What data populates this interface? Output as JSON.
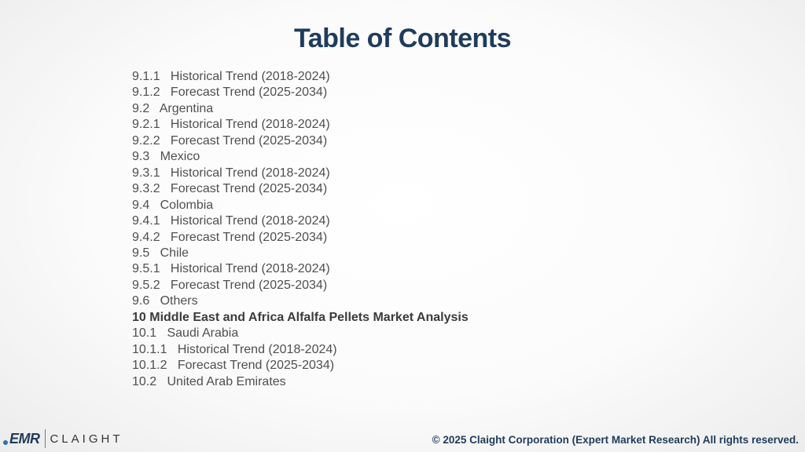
{
  "header": {
    "title": "Table of Contents"
  },
  "toc": {
    "items": [
      {
        "text": "9.1.1   Historical Trend (2018-2024)",
        "bold": false
      },
      {
        "text": "9.1.2   Forecast Trend (2025-2034)",
        "bold": false
      },
      {
        "text": "9.2   Argentina",
        "bold": false
      },
      {
        "text": "9.2.1   Historical Trend (2018-2024)",
        "bold": false
      },
      {
        "text": "9.2.2   Forecast Trend (2025-2034)",
        "bold": false
      },
      {
        "text": "9.3   Mexico",
        "bold": false
      },
      {
        "text": "9.3.1   Historical Trend (2018-2024)",
        "bold": false
      },
      {
        "text": "9.3.2   Forecast Trend (2025-2034)",
        "bold": false
      },
      {
        "text": "9.4   Colombia",
        "bold": false
      },
      {
        "text": "9.4.1   Historical Trend (2018-2024)",
        "bold": false
      },
      {
        "text": "9.4.2   Forecast Trend (2025-2034)",
        "bold": false
      },
      {
        "text": "9.5   Chile",
        "bold": false
      },
      {
        "text": "9.5.1   Historical Trend (2018-2024)",
        "bold": false
      },
      {
        "text": "9.5.2   Forecast Trend (2025-2034)",
        "bold": false
      },
      {
        "text": "9.6   Others",
        "bold": false
      },
      {
        "text": "10 Middle East and Africa Alfalfa Pellets Market Analysis",
        "bold": true
      },
      {
        "text": "10.1   Saudi Arabia",
        "bold": false
      },
      {
        "text": "10.1.1   Historical Trend (2018-2024)",
        "bold": false
      },
      {
        "text": "10.1.2   Forecast Trend (2025-2034)",
        "bold": false
      },
      {
        "text": "10.2   United Arab Emirates",
        "bold": false
      }
    ]
  },
  "footer": {
    "copyright": "© 2025 Claight Corporation (Expert Market Research) All rights reserved."
  },
  "logo": {
    "emr": "EMR",
    "claight": "CLAIGHT",
    "icon": "emr-logo-icon"
  },
  "colors": {
    "title": "#1f3c5c",
    "text": "#4f4f4f",
    "footer": "#1f3c5c"
  }
}
